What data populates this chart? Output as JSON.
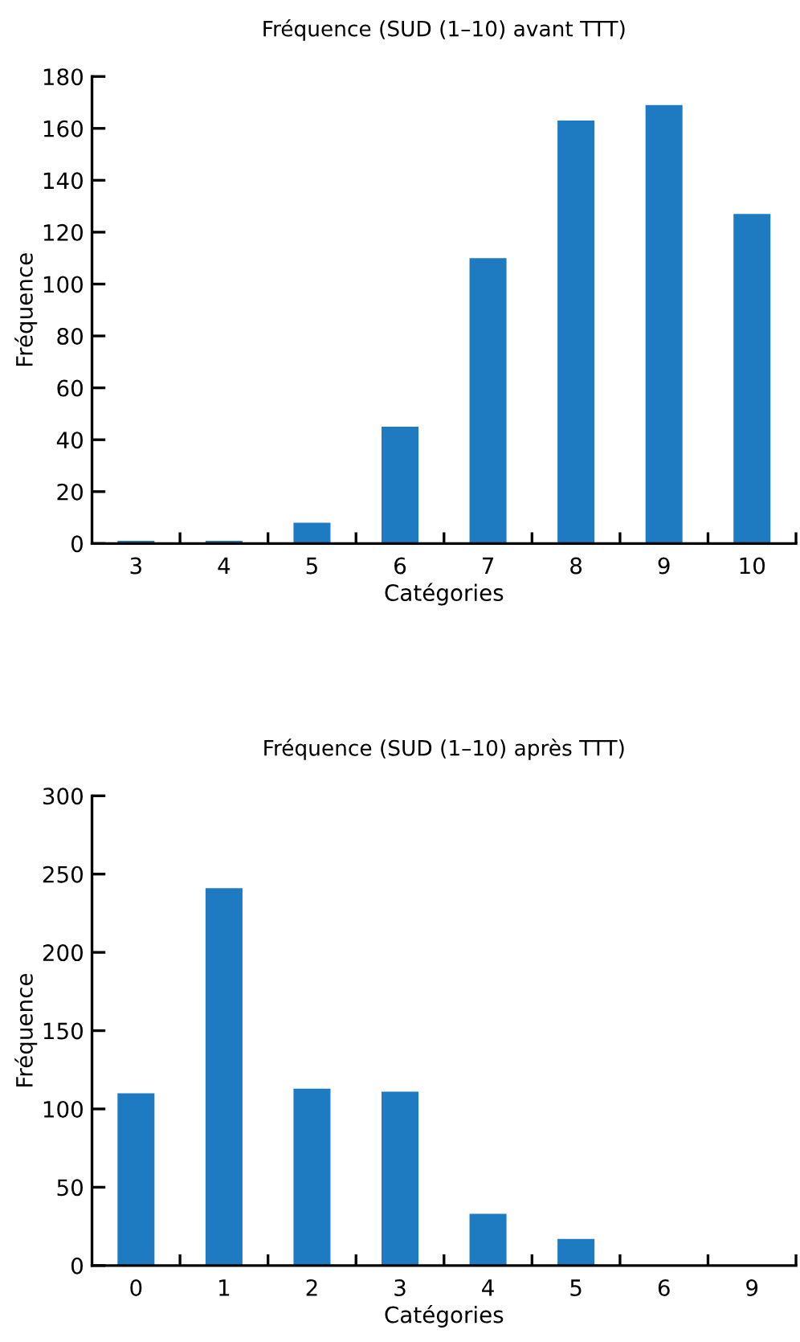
{
  "chart_data": [
    {
      "type": "bar",
      "title": "Fréquence (SUD (1–10) avant TTT)",
      "xlabel": "Catégories",
      "ylabel": "Fréquence",
      "categories": [
        "3",
        "4",
        "5",
        "6",
        "7",
        "8",
        "9",
        "10"
      ],
      "values": [
        1,
        1,
        8,
        45,
        110,
        163,
        169,
        127
      ],
      "color": "#1f7bc1",
      "ylim": [
        0,
        180
      ],
      "yticks": [
        0,
        20,
        40,
        60,
        80,
        100,
        120,
        140,
        160,
        180
      ],
      "grid": false,
      "legend": false
    },
    {
      "type": "bar",
      "title": "Fréquence (SUD (1–10) après TTT)",
      "xlabel": "Catégories",
      "ylabel": "Fréquence",
      "categories": [
        "0",
        "1",
        "2",
        "3",
        "4",
        "5",
        "6",
        "9"
      ],
      "values": [
        110,
        241,
        113,
        111,
        33,
        17,
        0,
        0
      ],
      "color": "#1f7bc1",
      "ylim": [
        0,
        300
      ],
      "yticks": [
        0,
        50,
        100,
        150,
        200,
        250,
        300
      ],
      "grid": false,
      "legend": false
    }
  ]
}
